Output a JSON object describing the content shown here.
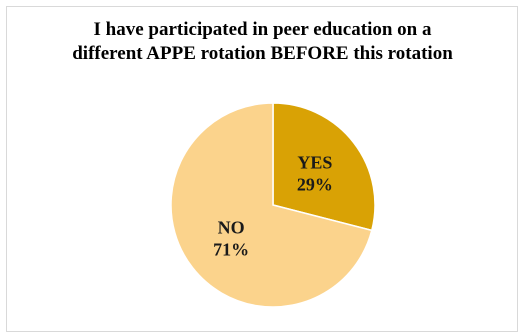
{
  "chart_data": {
    "type": "pie",
    "title": {
      "line1": "I have participated in peer education on a",
      "line2": "different APPE rotation BEFORE this rotation"
    },
    "slices": [
      {
        "label": "YES",
        "percent_label": "29%",
        "value": 29,
        "color": "#D9A205"
      },
      {
        "label": "NO",
        "percent_label": "71%",
        "value": 71,
        "color": "#FBD38C"
      }
    ],
    "legend": "none",
    "slice_edge_color": "#ffffff"
  }
}
